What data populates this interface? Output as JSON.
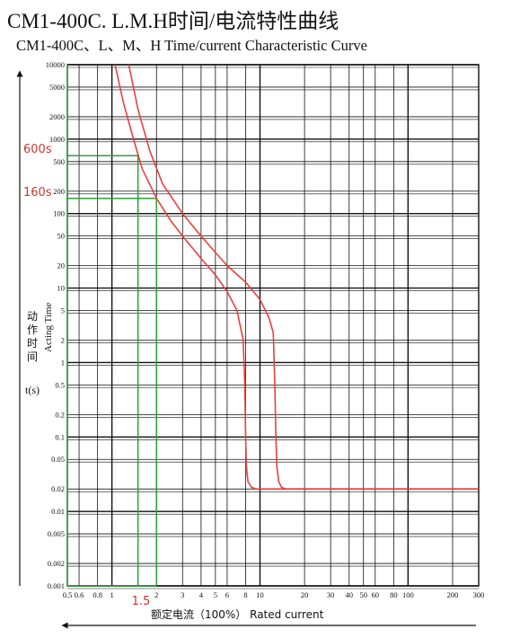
{
  "title_main": "CM1-400C. L.M.H时间/电流特性曲线",
  "title_sub": "CM1-400C、L、M、H Time/current Characteristic Curve",
  "colors": {
    "grid": "#111111",
    "curve": "#e8403c",
    "marker": "#2e9e3a",
    "annotation": "#c0392b"
  },
  "chart_data": {
    "type": "line",
    "xlabel": "额定电流（100%） Rated current",
    "ylabel_cn": "动作时间",
    "ylabel_en": "Acting Time",
    "ylabel_unit": "t(s)",
    "x_scale": "log",
    "y_scale": "log",
    "xlim": [
      0.5,
      300
    ],
    "ylim": [
      0.001,
      10000
    ],
    "grid": true,
    "x_ticks": [
      "0.5",
      "0.6",
      "0.8",
      "1",
      "2",
      "3",
      "4",
      "5",
      "6",
      "8",
      "10",
      "20",
      "30",
      "40",
      "50",
      "60",
      "80",
      "100",
      "200",
      "300"
    ],
    "y_ticks": [
      "10000",
      "5000",
      "2000",
      "1000",
      "500",
      "200",
      "100",
      "50",
      "20",
      "10",
      "5",
      "2",
      "1",
      "0.5",
      "0.2",
      "0.1",
      "0.05",
      "0.02",
      "0.01",
      "0.005",
      "0.002",
      "0.001"
    ],
    "series": [
      {
        "x": [
          1.05,
          1.2,
          1.4,
          1.6,
          2,
          2.5,
          3,
          4,
          5,
          6,
          7,
          7.7,
          7.9,
          8.0,
          8.1,
          8.3,
          8.8,
          9.5,
          10.5,
          300
        ],
        "y": [
          10000,
          3000,
          1000,
          400,
          160,
          80,
          50,
          25,
          15,
          9,
          5,
          2,
          0.5,
          0.1,
          0.04,
          0.025,
          0.021,
          0.02,
          0.02,
          0.02
        ]
      },
      {
        "x": [
          1.3,
          1.5,
          1.8,
          2.2,
          3,
          4,
          5,
          6,
          8,
          10,
          11.5,
          12.3,
          12.6,
          12.8,
          13,
          13.4,
          14,
          15,
          300
        ],
        "y": [
          10000,
          2500,
          700,
          250,
          100,
          50,
          30,
          20,
          12,
          7,
          4,
          2.5,
          0.5,
          0.1,
          0.04,
          0.025,
          0.021,
          0.02,
          0.02
        ]
      }
    ],
    "annotations": [
      {
        "label": "600s",
        "time": 600
      },
      {
        "label": "160s",
        "time": 160
      },
      {
        "label": "1.5",
        "current": 1.5
      }
    ],
    "marker_lines": [
      {
        "current": 1.5,
        "time": 600
      },
      {
        "current": 2,
        "time": 160
      }
    ]
  }
}
